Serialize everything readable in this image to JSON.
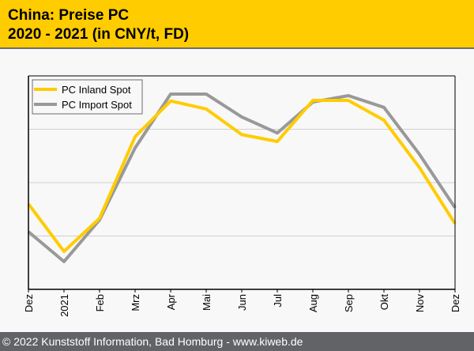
{
  "header": {
    "title_line1": "China: Preise PC",
    "title_line2": "2020 - 2021 (in CNY/t, FD)"
  },
  "footer": {
    "text": "© 2022 Kunststoff Information, Bad Homburg - www.kiweb.de"
  },
  "colors": {
    "header_bg": "#ffcc00",
    "footer_bg": "#626366",
    "inland": "#ffcc00",
    "import": "#999999"
  },
  "chart_data": {
    "type": "line",
    "title": "China: Preise PC 2020 - 2021 (in CNY/t, FD)",
    "xlabel": "",
    "ylabel": "",
    "y_units_note": "No y-axis tick labels shown; values are relative, in gridline units (0 = bottom axis, 4 = top of plot)",
    "ylim": [
      0,
      4
    ],
    "grid": true,
    "gridlines_y": [
      1,
      2,
      3
    ],
    "legend_position": "top-left",
    "categories": [
      "Dez",
      "2021",
      "Feb",
      "Mrz",
      "Apr",
      "Mai",
      "Jun",
      "Jul",
      "Aug",
      "Sep",
      "Okt",
      "Nov",
      "Dez"
    ],
    "series": [
      {
        "name": "PC Inland Spot",
        "color": "#ffcc00",
        "values": [
          1.6,
          0.71,
          1.33,
          2.86,
          3.53,
          3.38,
          2.9,
          2.77,
          3.54,
          3.54,
          3.17,
          2.28,
          1.23
        ]
      },
      {
        "name": "PC Import Spot",
        "color": "#999999",
        "values": [
          1.08,
          0.52,
          1.3,
          2.65,
          3.66,
          3.66,
          3.23,
          2.93,
          3.51,
          3.63,
          3.41,
          2.53,
          1.53
        ]
      }
    ]
  }
}
